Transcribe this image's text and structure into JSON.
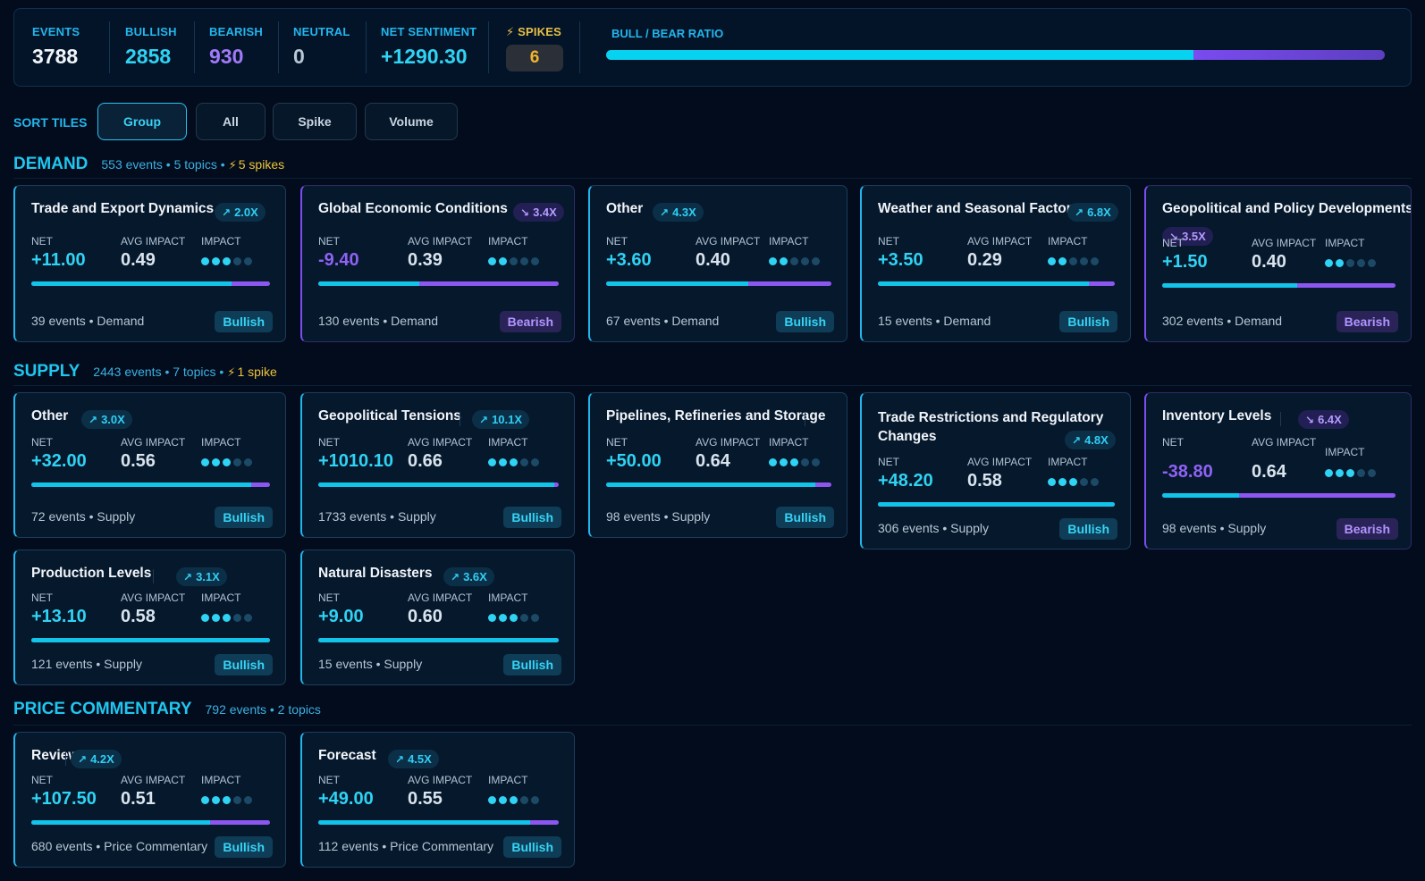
{
  "stats": {
    "events_label": "EVENTS",
    "events": "3788",
    "bullish_label": "BULLISH",
    "bullish": "2858",
    "bearish_label": "BEARISH",
    "bearish": "930",
    "neutral_label": "NEUTRAL",
    "neutral": "0",
    "net_label": "NET SENTIMENT",
    "net": "+1290.30",
    "spikes_label": "SPIKES",
    "spikes": "6",
    "ratio_label": "BULL / BEAR RATIO",
    "bull_fraction": 0.7545
  },
  "colors": {
    "accent": "#22b6ee",
    "bullish": "#2fd3f4",
    "bearish": "#8f62f5",
    "spike": "#efc339",
    "background": "#020c1c"
  },
  "sort": {
    "label": "SORT TILES",
    "options": [
      "Group",
      "All",
      "Spike",
      "Volume"
    ],
    "active": "Group"
  },
  "sections": [
    {
      "title": "DEMAND",
      "meta": "553 events • 5 topics •",
      "spikes": "5 spikes"
    },
    {
      "title": "SUPPLY",
      "meta": "2443 events • 7 topics •",
      "spikes": "1 spike"
    },
    {
      "title": "PRICE COMMENTARY",
      "meta": "792 events • 2 topics"
    }
  ],
  "labels": {
    "net": "NET",
    "avg": "AVG IMPACT",
    "impact": "IMPACT"
  },
  "tiles": [
    {
      "title": "Trade and Export Dynamics",
      "badge": "2.0X",
      "badge_dir": "up",
      "net": "+11.00",
      "avg": "0.49",
      "dots": 3,
      "bar": 0.84,
      "footer": "39 events • Demand",
      "sentiment": "Bullish"
    },
    {
      "title": "Global Economic Conditions",
      "badge": "3.4X",
      "badge_dir": "down",
      "net": "-9.40",
      "avg": "0.39",
      "dots": 2,
      "bar": 0.42,
      "footer": "130 events • Demand",
      "sentiment": "Bearish"
    },
    {
      "title": "Other",
      "badge": "4.3X",
      "badge_dir": "up",
      "net": "+3.60",
      "avg": "0.40",
      "dots": 2,
      "bar": 0.63,
      "footer": "67 events • Demand",
      "sentiment": "Bullish"
    },
    {
      "title": "Weather and Seasonal Factors",
      "badge": "6.8X",
      "badge_dir": "up",
      "net": "+3.50",
      "avg": "0.29",
      "dots": 2,
      "bar": 0.89,
      "footer": "15 events • Demand",
      "sentiment": "Bullish"
    },
    {
      "title": "Geopolitical and Policy Developments",
      "badge": "3.5X",
      "badge_dir": "down",
      "net": "+1.50",
      "avg": "0.40",
      "dots": 2,
      "bar": 0.58,
      "footer": "302 events • Demand",
      "sentiment": "Bearish"
    },
    {
      "title": "Other",
      "badge": "3.0X",
      "badge_dir": "up",
      "net": "+32.00",
      "avg": "0.56",
      "dots": 3,
      "bar": 0.92,
      "footer": "72 events • Supply",
      "sentiment": "Bullish"
    },
    {
      "title": "Geopolitical Tensions",
      "badge": "10.1X",
      "badge_dir": "up",
      "net": "+1010.10",
      "avg": "0.66",
      "dots": 3,
      "bar": 0.98,
      "footer": "1733 events • Supply",
      "sentiment": "Bullish"
    },
    {
      "title": "Pipelines, Refineries and Storage",
      "badge": "",
      "badge_dir": "up",
      "net": "+50.00",
      "avg": "0.64",
      "dots": 3,
      "bar": 0.93,
      "footer": "98 events • Supply",
      "sentiment": "Bullish"
    },
    {
      "title": "Trade Restrictions and Regulatory Changes",
      "badge": "4.8X",
      "badge_dir": "up",
      "net": "+48.20",
      "avg": "0.58",
      "dots": 3,
      "bar": 1.0,
      "footer": "306 events • Supply",
      "sentiment": "Bullish"
    },
    {
      "title": "Inventory Levels",
      "badge": "6.4X",
      "badge_dir": "down",
      "net": "-38.80",
      "avg": "0.64",
      "dots": 3,
      "bar": 0.33,
      "footer": "98 events • Supply",
      "sentiment": "Bearish"
    },
    {
      "title": "Production Levels",
      "badge": "3.1X",
      "badge_dir": "up",
      "net": "+13.10",
      "avg": "0.58",
      "dots": 3,
      "bar": 1.0,
      "footer": "121 events • Supply",
      "sentiment": "Bullish"
    },
    {
      "title": "Natural Disasters",
      "badge": "3.6X",
      "badge_dir": "up",
      "net": "+9.00",
      "avg": "0.60",
      "dots": 3,
      "bar": 1.0,
      "footer": "15 events • Supply",
      "sentiment": "Bullish"
    },
    {
      "title": "Review",
      "badge": "4.2X",
      "badge_dir": "up",
      "net": "+107.50",
      "avg": "0.51",
      "dots": 3,
      "bar": 0.75,
      "footer": "680 events • Price Commentary",
      "sentiment": "Bullish"
    },
    {
      "title": "Forecast",
      "badge": "4.5X",
      "badge_dir": "up",
      "net": "+49.00",
      "avg": "0.55",
      "dots": 3,
      "bar": 0.88,
      "footer": "112 events • Price Commentary",
      "sentiment": "Bullish"
    }
  ]
}
